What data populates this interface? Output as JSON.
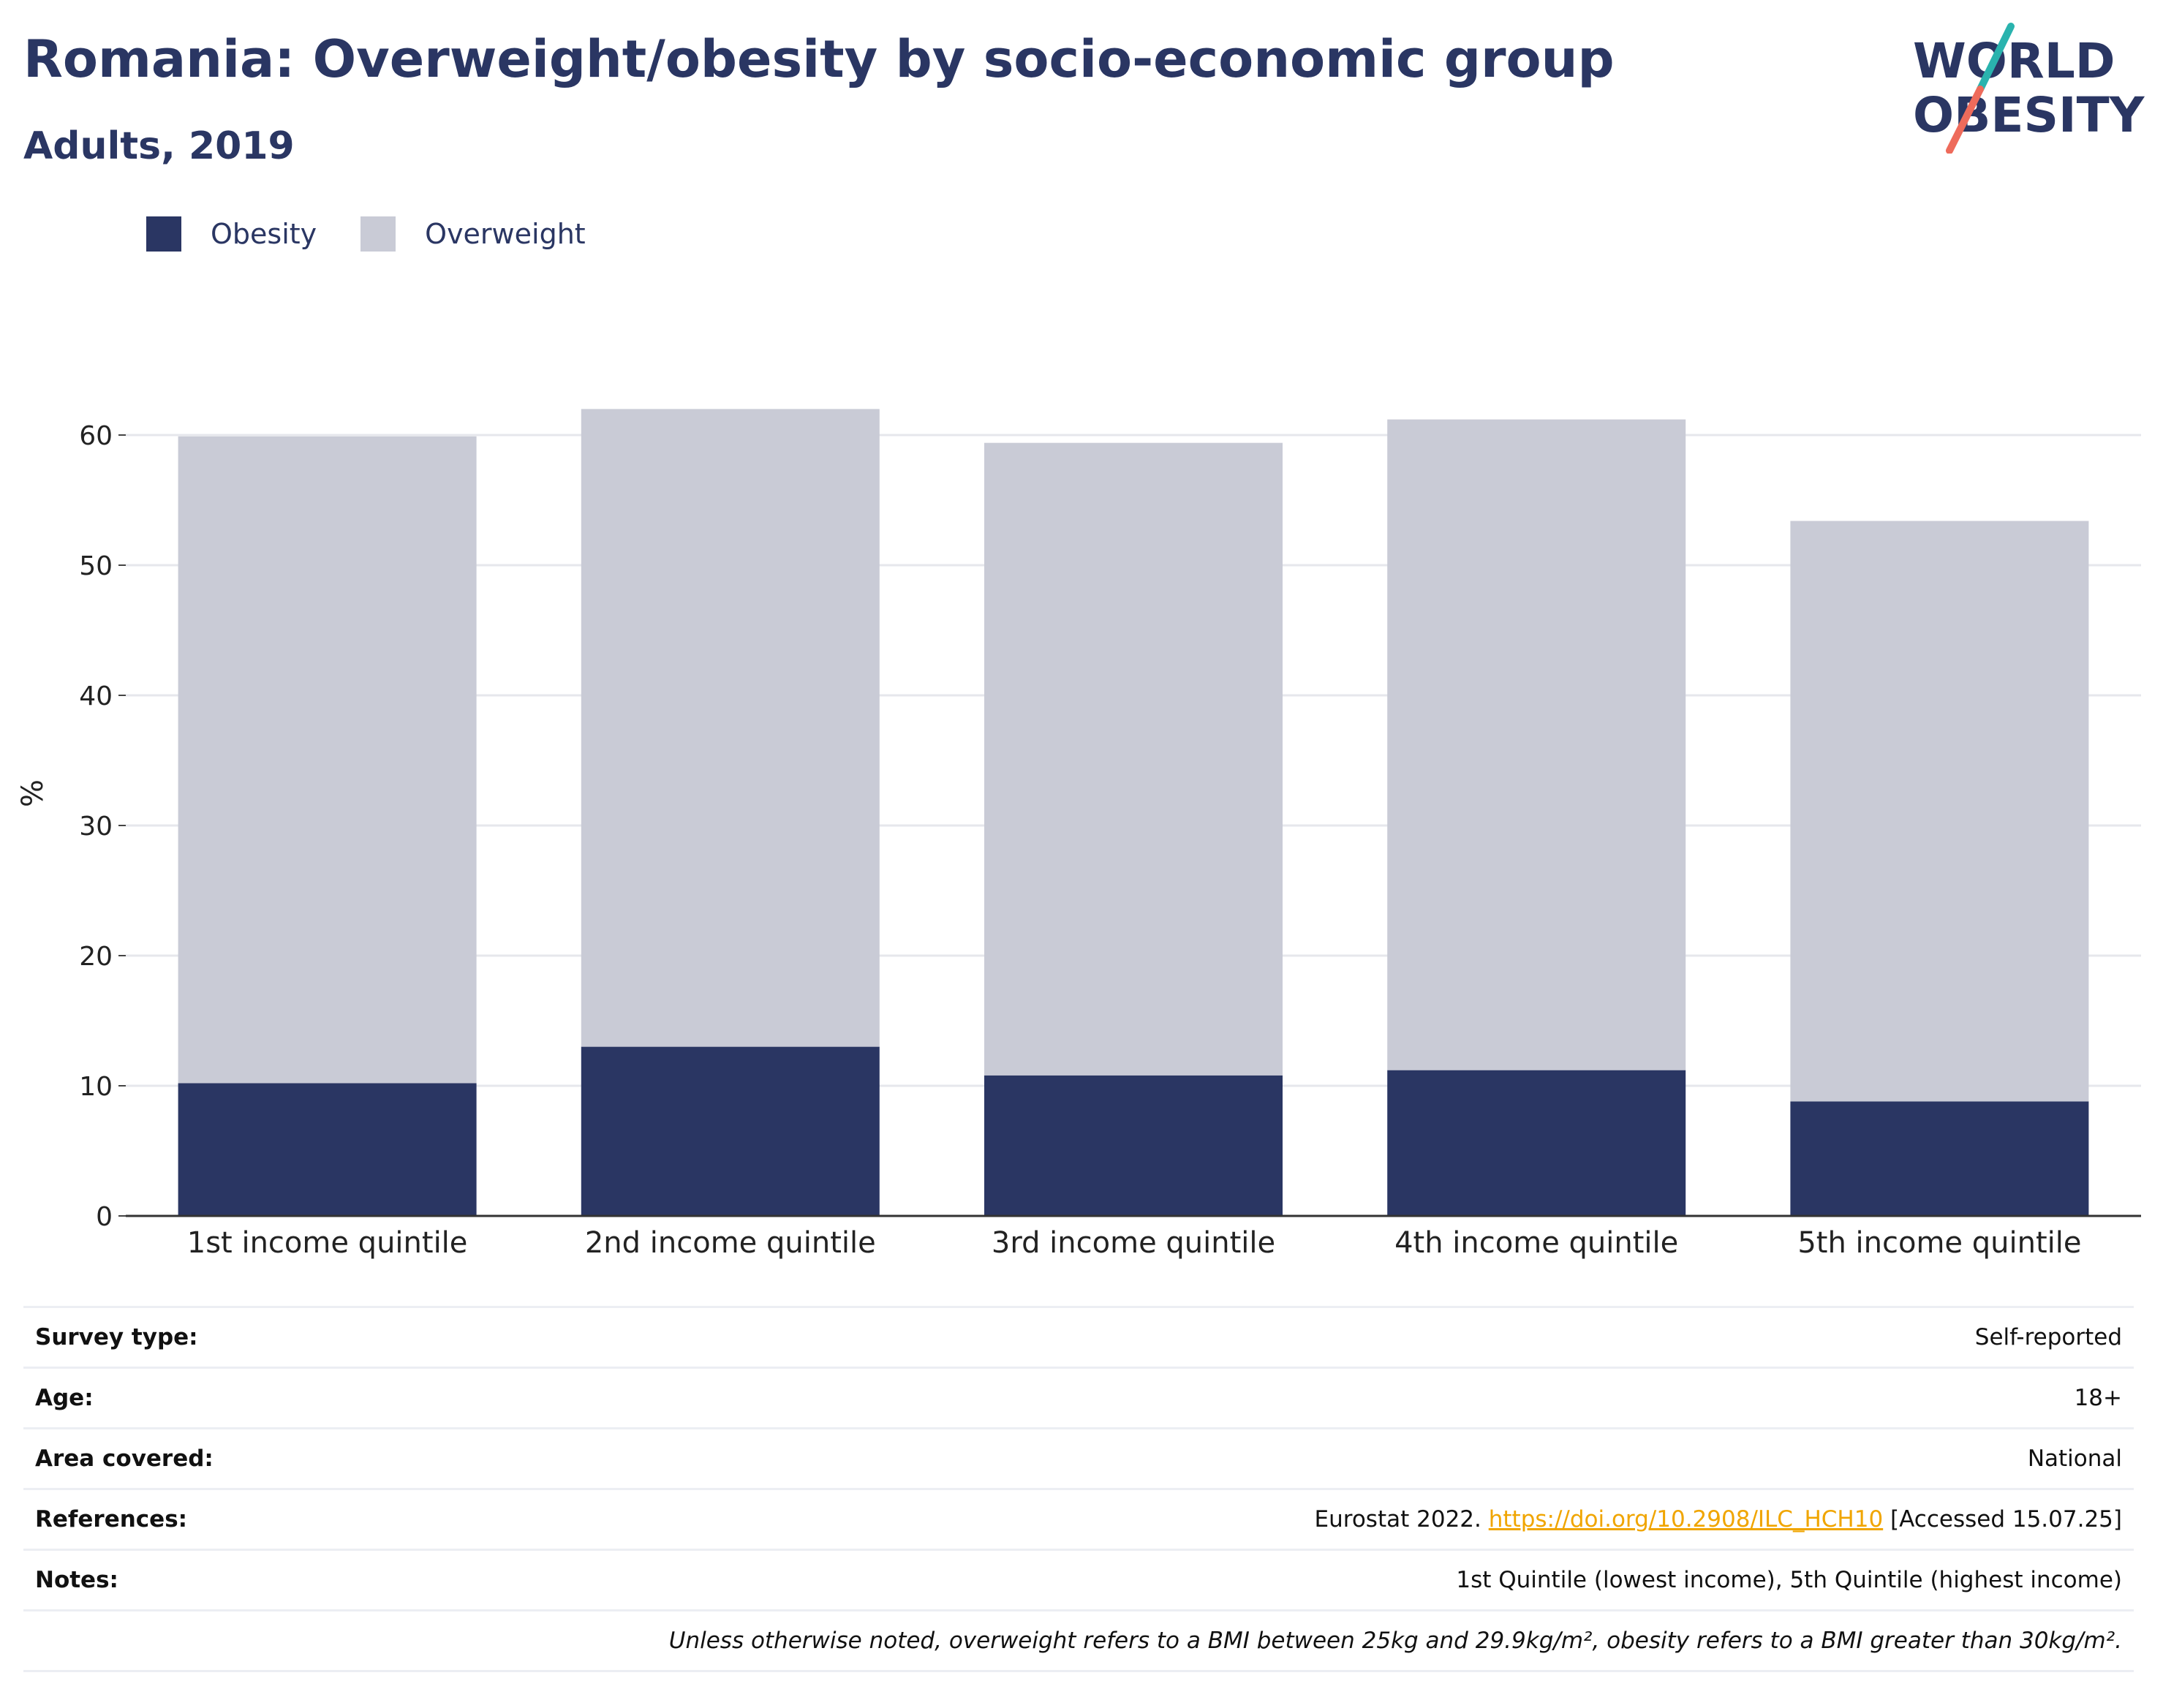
{
  "header": {
    "title": "Romania: Overweight/obesity by socio-economic group",
    "subtitle": "Adults, 2019"
  },
  "logo": {
    "line1": "WORLD",
    "line2": "OBESITY"
  },
  "colors": {
    "obesity": "#2a3663",
    "overweight": "#c9cbd6",
    "link": "#f0a500",
    "accent_teal": "#2ab3ae",
    "accent_coral": "#ee6b5b"
  },
  "chart_data": {
    "type": "bar",
    "stacked": true,
    "categories": [
      "1st income quintile",
      "2nd income quintile",
      "3rd income quintile",
      "4th income quintile",
      "5th income quintile"
    ],
    "series": [
      {
        "name": "Obesity",
        "values": [
          10.2,
          13.0,
          10.8,
          11.2,
          8.8
        ]
      },
      {
        "name": "Overweight",
        "values": [
          49.7,
          49.0,
          48.6,
          50.0,
          44.6
        ]
      }
    ],
    "totals": [
      59.9,
      62.0,
      59.4,
      61.2,
      53.4
    ],
    "ylabel": "%",
    "yticks": [
      0,
      10,
      20,
      30,
      40,
      50,
      60
    ],
    "ylim": [
      0,
      66
    ],
    "grid": true,
    "legend": "top-left"
  },
  "meta": {
    "rows": [
      {
        "key": "Survey type:",
        "value": "Self-reported"
      },
      {
        "key": "Age:",
        "value": "18+"
      },
      {
        "key": "Area covered:",
        "value": "National"
      },
      {
        "key": "References:",
        "value_pre": "Eurostat 2022. ",
        "link": "https://doi.org/10.2908/ILC_HCH10",
        "value_post": " [Accessed 15.07.25]"
      },
      {
        "key": "Notes:",
        "value": "1st Quintile (lowest income), 5th Quintile (highest income)"
      }
    ],
    "footnote": "Unless otherwise noted, overweight refers to a BMI between 25kg and 29.9kg/m², obesity refers to a BMI greater than 30kg/m²."
  }
}
